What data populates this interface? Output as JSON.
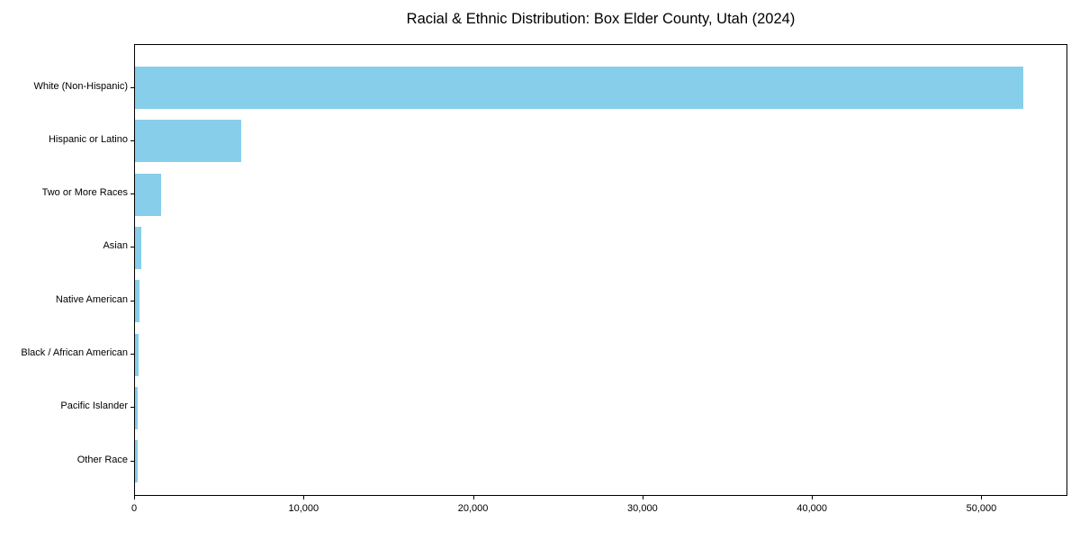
{
  "chart_data": {
    "type": "bar",
    "orientation": "horizontal",
    "title": "Racial & Ethnic Distribution: Box Elder County, Utah (2024)",
    "categories": [
      "White (Non-Hispanic)",
      "Hispanic or Latino",
      "Two or More Races",
      "Asian",
      "Native American",
      "Black / African American",
      "Pacific Islander",
      "Other Race"
    ],
    "values": [
      52400,
      6250,
      1550,
      390,
      280,
      225,
      140,
      170
    ],
    "xlabel": "",
    "ylabel": "",
    "xlim": [
      0,
      55020
    ],
    "x_ticks": [
      0,
      10000,
      20000,
      30000,
      40000,
      50000
    ],
    "bar_color": "#87CEEB",
    "background_color": "#ffffff",
    "grid": false,
    "legend": null
  }
}
